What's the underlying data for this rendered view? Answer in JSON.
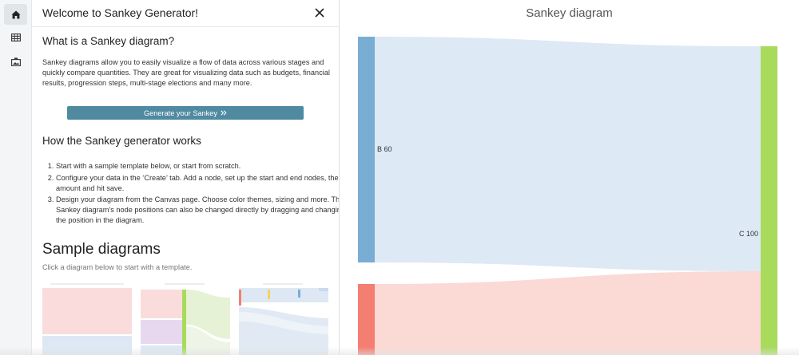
{
  "sidebar": {
    "items": [
      {
        "name": "home",
        "icon": "home-icon",
        "active": true
      },
      {
        "name": "table",
        "icon": "table-icon",
        "active": false
      },
      {
        "name": "canvas",
        "icon": "image-icon",
        "active": false
      }
    ]
  },
  "panel": {
    "title": "Welcome to Sankey Generator!",
    "close_icon": "close-icon",
    "what_heading": "What is a Sankey diagram?",
    "what_text": "Sankey diagrams allow you to easily visualize a flow of data across various stages and quickly compare quantities. They are great for visualizing data such as budgets, financial results, progression steps, multi-stage elections and many more.",
    "generate_label": "Generate your Sankey",
    "generate_icon": "double-chevron-right-icon",
    "how_heading": "How the Sankey generator works",
    "steps": [
      "Start with a sample template below, or start from scratch.",
      "Configure your data in the ‘Create’ tab. Add a node, set up the start and end nodes, the amount and hit save.",
      "Design your diagram from the Canvas page. Choose color themes, sizing and more. The Sankey diagram’s node positions can also be changed directly by dragging and changing the position in the diagram."
    ],
    "samples_heading": "Sample diagrams",
    "samples_subtext": "Click a diagram below to start with a template."
  },
  "canvas": {
    "title": "Sankey diagram",
    "nodes": [
      {
        "label": "B 60",
        "color": "#7aadd3"
      },
      {
        "label": "C 100",
        "color": "#a8da5b"
      },
      {
        "label": "",
        "color": "#f47e72"
      }
    ],
    "link_colors": [
      "#dde9f5",
      "#fbd9d5"
    ]
  },
  "colors": {
    "accent": "#4f8aa1",
    "rail_bg": "#f4f5f6"
  }
}
